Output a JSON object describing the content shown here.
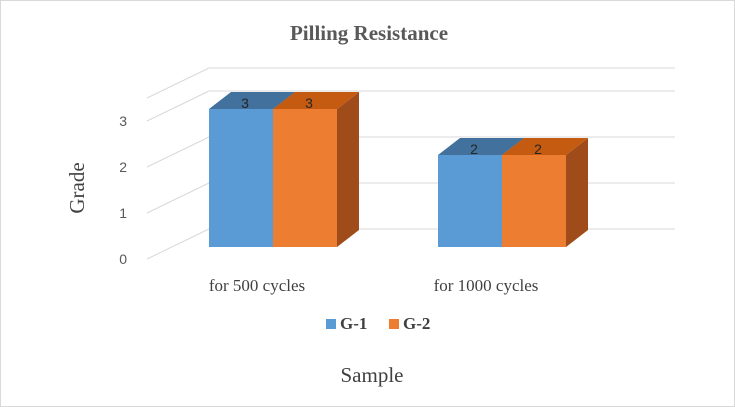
{
  "chart_data": {
    "type": "bar",
    "style": "3d-clustered-column",
    "title": "Pilling Resistance",
    "xlabel": "Sample",
    "ylabel": "Grade",
    "categories": [
      "for 500 cycles",
      "for 1000 cycles"
    ],
    "series": [
      {
        "name": "G-1",
        "values": [
          3,
          2
        ],
        "color": "#5b9bd5",
        "top_color": "#41719c",
        "side_color": "#3d6fa0"
      },
      {
        "name": "G-2",
        "values": [
          3,
          2
        ],
        "color": "#ed7d31",
        "top_color": "#c55a11",
        "side_color": "#a04c1a"
      }
    ],
    "y_ticks": [
      0,
      1,
      2,
      3
    ],
    "ylim": [
      0,
      3.5
    ],
    "grid": true,
    "gridline_color": "#d9d9d9",
    "legend_position": "bottom",
    "data_labels": true
  }
}
